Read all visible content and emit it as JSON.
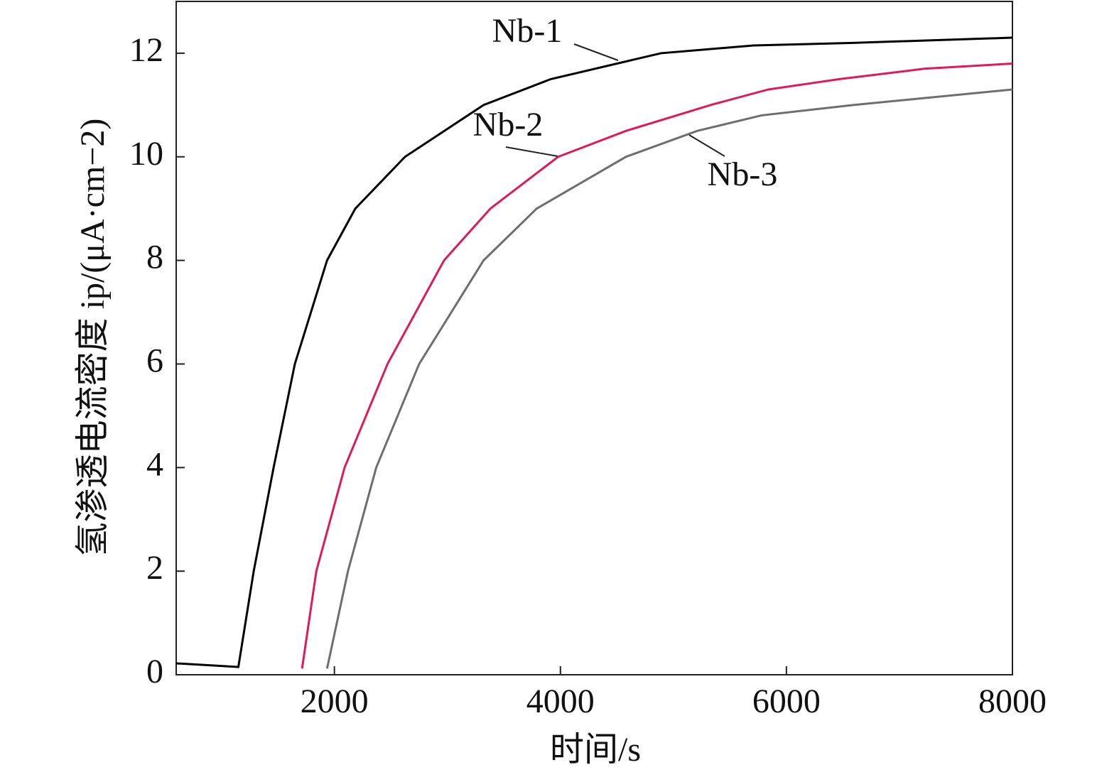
{
  "chart_data": {
    "type": "line",
    "xlabel": "时间/s",
    "ylabel": "氢渗透电流密度 ip/(μA·cm−2)",
    "xlim": [
      600,
      8000
    ],
    "xticks": [
      2000,
      4000,
      6000,
      8000
    ],
    "ylim": [
      0,
      13
    ],
    "yticks": [
      0,
      2,
      4,
      6,
      8,
      10,
      12
    ],
    "series": [
      {
        "name": "Nb-1",
        "color": "#000000",
        "x": [
          600,
          1000,
          1150,
          1286,
          1462,
          1650,
          1935,
          2185,
          2625,
          3320,
          3915,
          4890,
          5710,
          6590,
          8000
        ],
        "values": [
          0.22,
          0.17,
          0.15,
          2,
          4,
          6,
          8,
          9,
          10,
          11,
          11.5,
          12,
          12.15,
          12.2,
          12.3
        ]
      },
      {
        "name": "Nb-2",
        "color": "#e0195a",
        "x": [
          1714,
          1840,
          2090,
          2470,
          2970,
          3380,
          3980,
          4580,
          5330,
          5840,
          6470,
          7220,
          8000
        ],
        "values": [
          0.12,
          2,
          4,
          6,
          8,
          9,
          10,
          10.5,
          11,
          11.3,
          11.5,
          11.7,
          11.8
        ]
      },
      {
        "name": "Nb-3",
        "color": "#6e6e6e",
        "x": [
          1935,
          2120,
          2370,
          2750,
          3320,
          3790,
          4580,
          5210,
          5780,
          6590,
          8000
        ],
        "values": [
          0.12,
          2,
          4,
          6,
          8,
          9,
          10,
          10.5,
          10.8,
          11,
          11.3
        ]
      }
    ]
  }
}
